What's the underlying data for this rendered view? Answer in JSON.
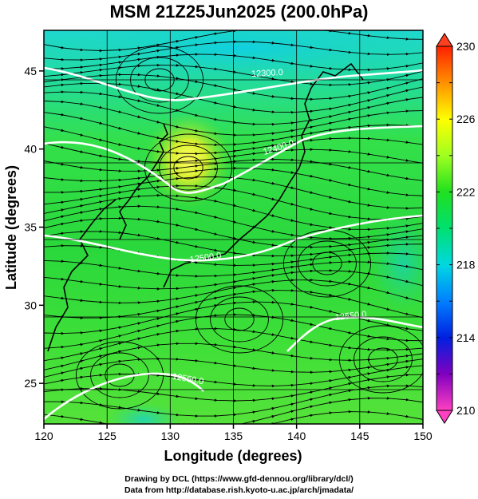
{
  "title": "MSM 21Z25Jun2025 (200.0hPa)",
  "axes": {
    "xlabel": "Longitude (degrees)",
    "ylabel": "Latitude  (degrees)",
    "lon_range": [
      120,
      150
    ],
    "lat_range": [
      22.4,
      47.6
    ],
    "lon_ticks": [
      "120",
      "125",
      "130",
      "135",
      "140",
      "145",
      "150"
    ],
    "lat_ticks": [
      "25",
      "30",
      "35",
      "40",
      "45"
    ],
    "grid": true
  },
  "colorbar": {
    "min": 210,
    "max": 230,
    "tick_labels": [
      "210",
      "214",
      "218",
      "222",
      "226",
      "230"
    ],
    "extend": "both"
  },
  "contours": [
    {
      "label": "12300.0",
      "level": 12300
    },
    {
      "label": "12400.0",
      "level": 12400
    },
    {
      "label": "12500.0",
      "level": 12500
    },
    {
      "label": "12550.0",
      "level": 12550
    },
    {
      "label": "12550.0",
      "level": 12550
    }
  ],
  "credits": {
    "line1": "Drawing by DCL (https://www.gfd-dennou.org/library/dcl/)",
    "line2": "Data from http://database.rish.kyoto-u.ac.jp/arch/jmadata/"
  },
  "colors": {
    "colormap": [
      "#ff40c0",
      "#8000c0",
      "#0020e0",
      "#00a0ff",
      "#00e0c0",
      "#00e060",
      "#20e020",
      "#c0ff20",
      "#ffff00",
      "#ffa000",
      "#ff2000"
    ],
    "contour": "#ffffff",
    "streamline": "#000000"
  }
}
